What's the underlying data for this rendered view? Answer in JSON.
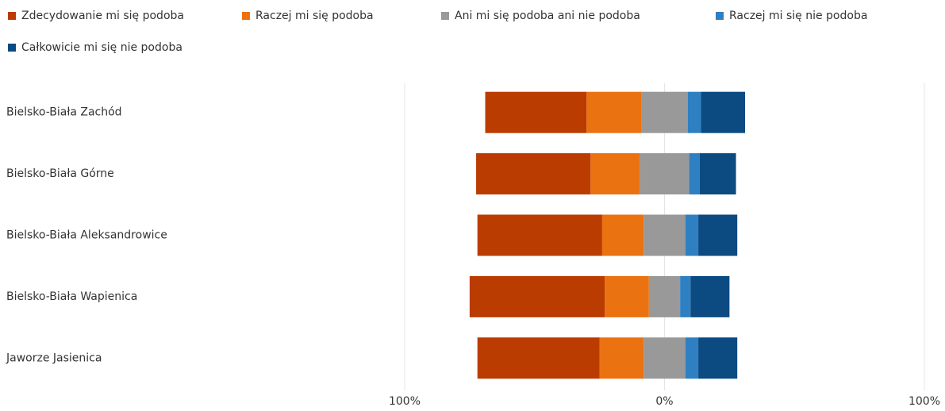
{
  "chart_data": {
    "type": "bar",
    "orientation": "horizontal",
    "stacking": "diverging",
    "neutral_series": 2,
    "grid": true,
    "legend": "top-left",
    "categories": [
      "Bielsko-Biała Zachód",
      "Bielsko-Biała Górne",
      "Bielsko-Biała Aleksandrowice",
      "Bielsko-Biała Wapienica",
      "Jaworze Jasienica"
    ],
    "series": [
      {
        "name": "Zdecydowanie mi się podoba",
        "color": "#bb3c00",
        "side": "negative",
        "values": [
          39,
          44,
          48,
          52,
          47
        ]
      },
      {
        "name": "Raczej mi się podoba",
        "color": "#eb7211",
        "side": "negative",
        "values": [
          21,
          19,
          16,
          17,
          17
        ]
      },
      {
        "name": "Ani mi się podoba ani nie podoba",
        "color": "#999999",
        "side": "neutral",
        "values": [
          18,
          19,
          16,
          12,
          16
        ]
      },
      {
        "name": "Raczej mi się nie podoba",
        "color": "#2f80c2",
        "side": "positive",
        "values": [
          5,
          4,
          5,
          4,
          5
        ]
      },
      {
        "name": "Całkowicie mi się nie podoba",
        "color": "#0c4a82",
        "side": "positive",
        "values": [
          17,
          14,
          15,
          15,
          15
        ]
      }
    ],
    "xlim": [
      -100,
      100
    ],
    "xticks": [
      {
        "value": -100,
        "label": "100%"
      },
      {
        "value": 0,
        "label": "0%"
      },
      {
        "value": 100,
        "label": "100%"
      }
    ]
  }
}
